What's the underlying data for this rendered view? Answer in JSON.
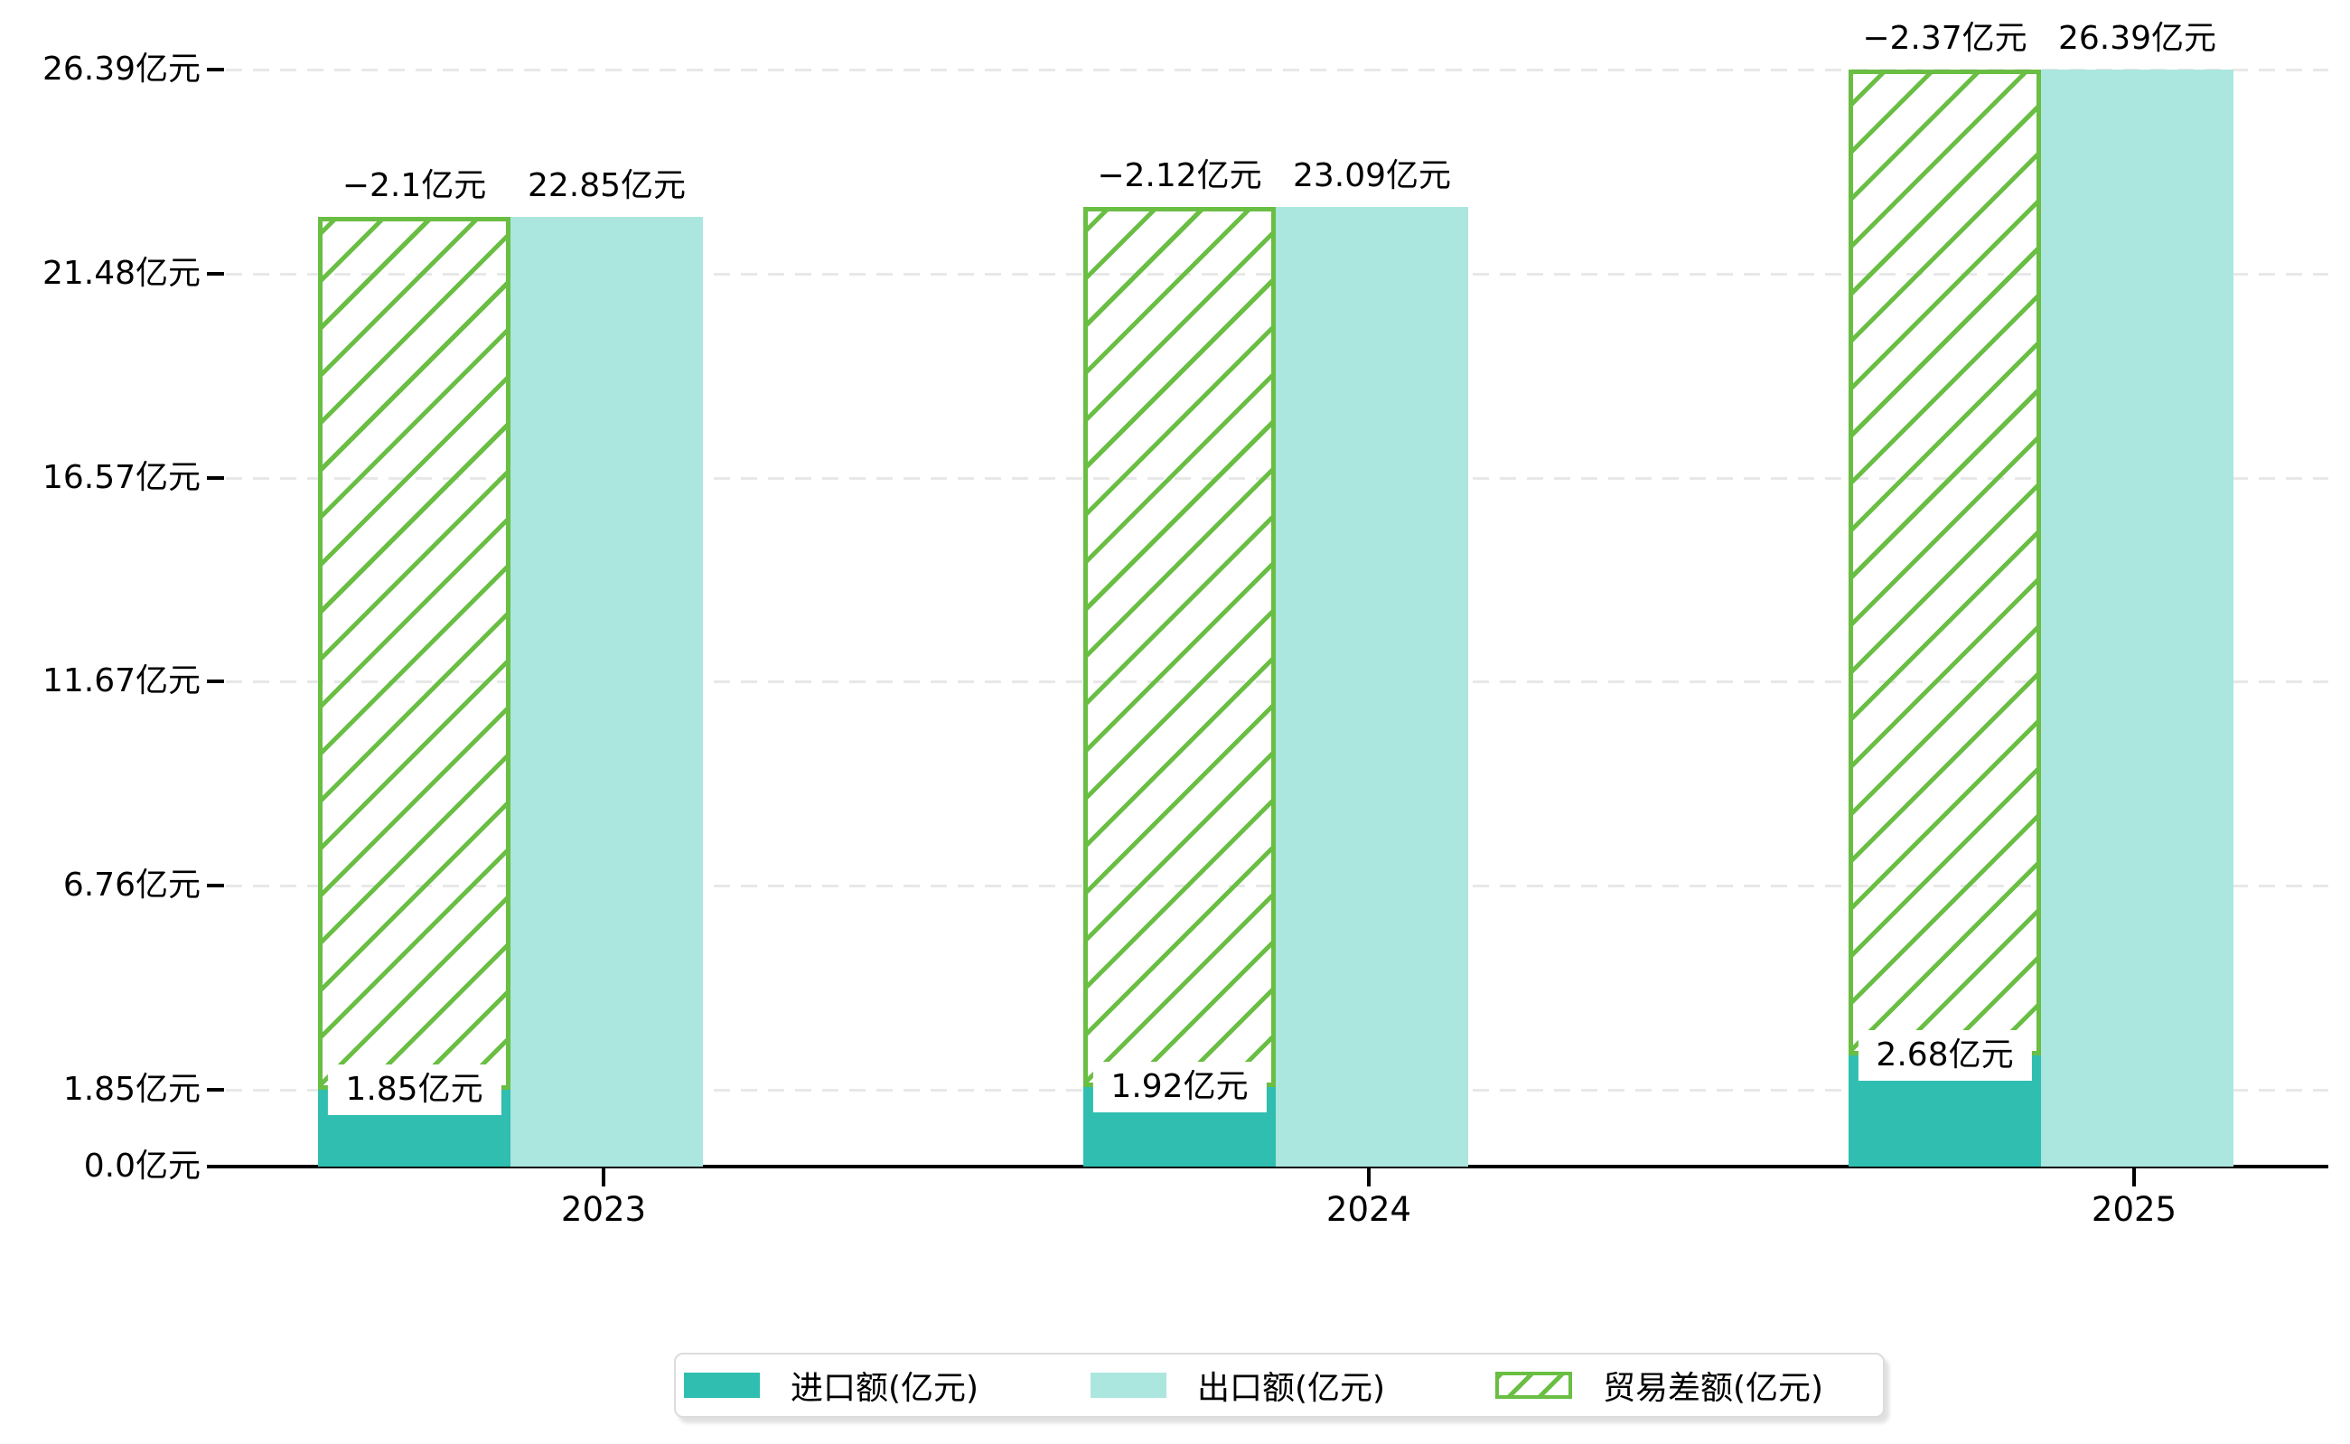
{
  "chart_data": {
    "type": "bar",
    "title": "",
    "xlabel": "",
    "ylabel": "",
    "categories": [
      "2023",
      "2024",
      "2025"
    ],
    "series": [
      {
        "name": "进口额(亿元)",
        "role": "import",
        "color": "#2fbeb0",
        "values": [
          1.85,
          1.92,
          2.68
        ],
        "data_labels": [
          "1.85亿元",
          "1.92亿元",
          "2.68亿元"
        ]
      },
      {
        "name": "出口额(亿元)",
        "role": "export",
        "color": "#abe6df",
        "values": [
          22.85,
          23.09,
          26.39
        ],
        "data_labels": [
          "22.85亿元",
          "23.09亿元",
          "26.39亿元"
        ]
      },
      {
        "name": "贸易差额(亿元)",
        "role": "trade-balance",
        "color": "#69be43",
        "style": "hatched-outline",
        "values": [
          -2.1,
          -2.12,
          -2.37
        ],
        "data_labels": [
          "−2.1亿元",
          "−2.12亿元",
          "−2.37亿元"
        ],
        "note": "hatched bar drawn spanning from the import value up to the export value of the same year"
      }
    ],
    "ylim": [
      0,
      27.2
    ],
    "yticks": [
      {
        "value": 0,
        "label": "0.0亿元"
      },
      {
        "value": 1.85,
        "label": "1.85亿元"
      },
      {
        "value": 6.76,
        "label": "6.76亿元"
      },
      {
        "value": 11.67,
        "label": "11.67亿元"
      },
      {
        "value": 16.57,
        "label": "16.57亿元"
      },
      {
        "value": 21.48,
        "label": "21.48亿元"
      },
      {
        "value": 26.39,
        "label": "26.39亿元"
      }
    ],
    "grid": {
      "horizontal": true,
      "style": "dashed",
      "color": "#e8e8e8"
    },
    "legend_position": "bottom"
  },
  "style_colors": {
    "import_bar": "#2fbeb0",
    "export_bar": "#abe6df",
    "trade_hatch": "#69be43",
    "axis": "#000000",
    "gridline": "#e8e8e8",
    "text": "#000000",
    "legend_border": "#dcdcdc",
    "legend_background": "#ffffff"
  }
}
